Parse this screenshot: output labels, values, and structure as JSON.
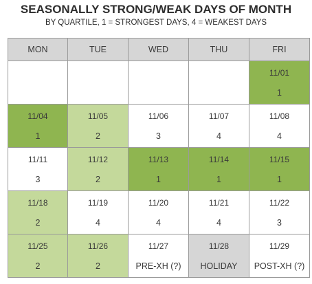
{
  "title": "SEASONALLY STRONG/WEAK DAYS OF MONTH",
  "subtitle": "BY QUARTILE, 1 = STRONGEST DAYS, 4 = WEAKEST DAYS",
  "colors": {
    "quartile_1": "#8fb550",
    "quartile_2": "#c4d99b",
    "quartile_3": "#ffffff",
    "quartile_4": "#ffffff",
    "holiday": "#d6d6d6",
    "header": "#d6d6d6"
  },
  "headers": [
    "MON",
    "TUE",
    "WED",
    "THU",
    "FRI"
  ],
  "weeks": [
    [
      null,
      null,
      null,
      null,
      {
        "date": "11/01",
        "label": "1",
        "quartile": 1
      }
    ],
    [
      {
        "date": "11/04",
        "label": "1",
        "quartile": 1
      },
      {
        "date": "11/05",
        "label": "2",
        "quartile": 2
      },
      {
        "date": "11/06",
        "label": "3",
        "quartile": 3
      },
      {
        "date": "11/07",
        "label": "4",
        "quartile": 4
      },
      {
        "date": "11/08",
        "label": "4",
        "quartile": 4
      }
    ],
    [
      {
        "date": "11/11",
        "label": "3",
        "quartile": 3
      },
      {
        "date": "11/12",
        "label": "2",
        "quartile": 2
      },
      {
        "date": "11/13",
        "label": "1",
        "quartile": 1
      },
      {
        "date": "11/14",
        "label": "1",
        "quartile": 1
      },
      {
        "date": "11/15",
        "label": "1",
        "quartile": 1
      }
    ],
    [
      {
        "date": "11/18",
        "label": "2",
        "quartile": 2
      },
      {
        "date": "11/19",
        "label": "4",
        "quartile": 4
      },
      {
        "date": "11/20",
        "label": "4",
        "quartile": 4
      },
      {
        "date": "11/21",
        "label": "4",
        "quartile": 4
      },
      {
        "date": "11/22",
        "label": "3",
        "quartile": 3
      }
    ],
    [
      {
        "date": "11/25",
        "label": "2",
        "quartile": 2
      },
      {
        "date": "11/26",
        "label": "2",
        "quartile": 2
      },
      {
        "date": "11/27",
        "label": "PRE-XH (?)",
        "quartile": null
      },
      {
        "date": "11/28",
        "label": "HOLIDAY",
        "quartile": "holiday"
      },
      {
        "date": "11/29",
        "label": "POST-XH (?)",
        "quartile": null
      }
    ]
  ]
}
